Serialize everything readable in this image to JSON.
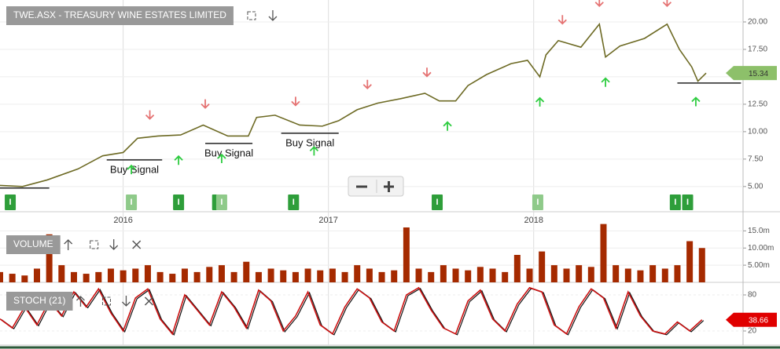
{
  "chart_data": [
    {
      "type": "line",
      "title": "TWE.ASX - TREASURY WINE ESTATES LIMITED",
      "color": "#6d6a24",
      "x": [
        2015.4,
        2015.51,
        2015.63,
        2015.78,
        2015.9,
        2016.0,
        2016.07,
        2016.17,
        2016.28,
        2016.39,
        2016.51,
        2016.61,
        2016.65,
        2016.74,
        2016.86,
        2016.97,
        2017.05,
        2017.14,
        2017.24,
        2017.35,
        2017.47,
        2017.54,
        2017.62,
        2017.68,
        2017.77,
        2017.89,
        2017.97,
        2018.03,
        2018.06,
        2018.12,
        2018.23,
        2018.32,
        2018.35,
        2018.42,
        2018.54,
        2018.65,
        2018.71,
        2018.77,
        2018.8,
        2018.84
      ],
      "values": [
        5.1,
        5.0,
        5.6,
        6.6,
        7.8,
        8.1,
        9.4,
        9.6,
        9.7,
        10.6,
        9.6,
        9.6,
        11.3,
        11.5,
        10.6,
        10.5,
        11.0,
        12.0,
        12.6,
        13.0,
        13.5,
        12.8,
        12.8,
        14.2,
        15.2,
        16.2,
        16.5,
        15.0,
        17.0,
        18.3,
        17.7,
        19.8,
        16.8,
        17.8,
        18.5,
        19.8,
        17.5,
        15.9,
        14.6,
        15.34
      ],
      "xlim": [
        2015.4,
        2019.02
      ],
      "xticks": [
        2016,
        2017,
        2018
      ],
      "ylim": [
        2.7,
        22
      ],
      "yticks": [
        {
          "value": 5,
          "label": "5.00"
        },
        {
          "value": 7.5,
          "label": "7.50"
        },
        {
          "value": 10,
          "label": "10.00"
        },
        {
          "value": 12.5,
          "label": "12.50"
        },
        {
          "value": 15,
          "label": "15.00"
        },
        {
          "value": 17.5,
          "label": "17.50"
        },
        {
          "value": 20,
          "label": "20.00"
        }
      ],
      "grid": true,
      "sell_signals": [
        2016.13,
        2016.4,
        2016.84,
        2017.19,
        2017.48,
        2018.14,
        2018.32,
        2018.65
      ],
      "buy_signals": [
        2016.04,
        2016.27,
        2016.48,
        2016.93,
        2017.58,
        2018.03,
        2018.35,
        2018.79
      ],
      "support_lines": [
        {
          "x": [
            2015.4,
            2015.64
          ],
          "y": 4.86
        },
        {
          "x": [
            2015.92,
            2016.19
          ],
          "y": 7.43,
          "label": "Buy Signal"
        },
        {
          "x": [
            2016.4,
            2016.63
          ],
          "y": 8.93,
          "label": "Buy Signal"
        },
        {
          "x": [
            2016.77,
            2017.05
          ],
          "y": 9.86,
          "label": "Buy Signal"
        },
        {
          "x": [
            2018.7,
            2019.01
          ],
          "y": 14.43
        }
      ],
      "event_label": "I",
      "events": [
        2015.45,
        2016.04,
        2016.27,
        2016.46,
        2016.48,
        2016.83,
        2017.53,
        2018.02,
        2018.69,
        2018.75
      ]
    },
    {
      "type": "bar",
      "title": "VOLUME",
      "color": "#a52a00",
      "x": [
        2015.4,
        2015.46,
        2015.52,
        2015.58,
        2015.64,
        2015.7,
        2015.76,
        2015.82,
        2015.88,
        2015.94,
        2016.0,
        2016.06,
        2016.12,
        2016.18,
        2016.24,
        2016.3,
        2016.36,
        2016.42,
        2016.48,
        2016.54,
        2016.6,
        2016.66,
        2016.72,
        2016.78,
        2016.84,
        2016.9,
        2016.96,
        2017.02,
        2017.08,
        2017.14,
        2017.2,
        2017.26,
        2017.32,
        2017.38,
        2017.44,
        2017.5,
        2017.56,
        2017.62,
        2017.68,
        2017.74,
        2017.8,
        2017.86,
        2017.92,
        2017.98,
        2018.04,
        2018.1,
        2018.16,
        2018.22,
        2018.28,
        2018.34,
        2018.4,
        2018.46,
        2018.52,
        2018.58,
        2018.64,
        2018.7,
        2018.76,
        2018.82
      ],
      "values": [
        3,
        2.5,
        2,
        4,
        14,
        5,
        3,
        2.5,
        3,
        4,
        3.5,
        4,
        5,
        3,
        2.5,
        4,
        3,
        4.5,
        5,
        3,
        6,
        3,
        4,
        3.5,
        3,
        4,
        3.5,
        4,
        3,
        5,
        4,
        3,
        3.5,
        16,
        4,
        3,
        5,
        4,
        3.5,
        4.5,
        4,
        3,
        8,
        4,
        9,
        5,
        4,
        5,
        4.5,
        17,
        5,
        4,
        3.5,
        5,
        4,
        5,
        12,
        10
      ],
      "xlim": [
        2015.4,
        2019.02
      ],
      "ylim": [
        0,
        16
      ],
      "yticks": [
        {
          "value": 5,
          "label": "5.00m"
        },
        {
          "value": 10,
          "label": "10.00m"
        },
        {
          "value": 15,
          "label": "15.0m"
        }
      ]
    },
    {
      "type": "line",
      "title": "STOCH (21)",
      "color": "#cc1010",
      "x": [
        2015.4,
        2015.46,
        2015.52,
        2015.58,
        2015.64,
        2015.7,
        2015.76,
        2015.82,
        2015.88,
        2015.94,
        2016.0,
        2016.06,
        2016.12,
        2016.18,
        2016.24,
        2016.3,
        2016.36,
        2016.42,
        2016.48,
        2016.54,
        2016.6,
        2016.66,
        2016.72,
        2016.78,
        2016.84,
        2016.9,
        2016.96,
        2017.02,
        2017.08,
        2017.14,
        2017.2,
        2017.26,
        2017.32,
        2017.38,
        2017.44,
        2017.5,
        2017.56,
        2017.62,
        2017.68,
        2017.74,
        2017.8,
        2017.86,
        2017.92,
        2017.98,
        2018.04,
        2018.1,
        2018.16,
        2018.22,
        2018.28,
        2018.34,
        2018.4,
        2018.46,
        2018.52,
        2018.58,
        2018.64,
        2018.7,
        2018.76,
        2018.82
      ],
      "values": [
        40,
        25,
        60,
        30,
        70,
        45,
        85,
        60,
        90,
        50,
        20,
        75,
        90,
        40,
        15,
        80,
        55,
        30,
        85,
        60,
        25,
        88,
        70,
        20,
        45,
        85,
        30,
        15,
        60,
        90,
        75,
        35,
        20,
        80,
        92,
        55,
        25,
        15,
        70,
        88,
        40,
        20,
        65,
        92,
        85,
        30,
        15,
        60,
        90,
        75,
        25,
        85,
        45,
        20,
        15,
        35,
        20,
        38.66
      ],
      "xlim": [
        2015.4,
        2019.02
      ],
      "ylim": [
        -3.5,
        98.3
      ],
      "yticks": [
        20,
        80
      ]
    }
  ]
}
